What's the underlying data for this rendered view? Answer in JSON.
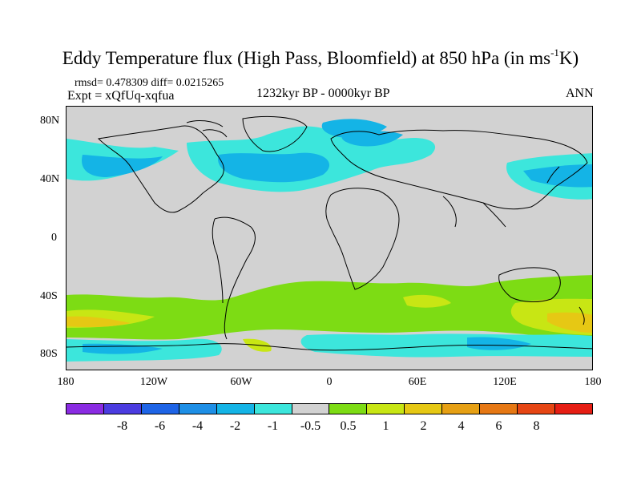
{
  "title_main": "Eddy Temperature flux (High Pass, Bloomfield) at 850 hPa (in ms",
  "title_sup": "-1",
  "title_end": "K)",
  "stats": "rmsd= 0.478309 diff= 0.0215265",
  "expt": "Expt = xQfUq-xqfua",
  "period": "1232kyr BP - 0000kyr BP",
  "season": "ANN",
  "lat_labels": [
    "80N",
    "40N",
    "0",
    "40S",
    "80S"
  ],
  "lon_labels": [
    "180",
    "120W",
    "60W",
    "0",
    "60E",
    "120E",
    "180"
  ],
  "colorbar": {
    "colors": [
      "#8a2be2",
      "#4b3ce0",
      "#1e64e6",
      "#1e8fe6",
      "#14b4e6",
      "#3ce6dc",
      "#d2d2d2",
      "#7ddc14",
      "#c8e614",
      "#e6c814",
      "#e6a014",
      "#e67814",
      "#e64614",
      "#e61e14"
    ],
    "labels": [
      "-8",
      "-6",
      "-4",
      "-2",
      "-1",
      "-0.5",
      "0.5",
      "1",
      "2",
      "4",
      "6",
      "8"
    ]
  },
  "colors": {
    "land_ocean_zero": "#d2d2d2",
    "neg_light": "#3ce6dc",
    "neg_mid": "#14b4e6",
    "pos_light": "#7ddc14",
    "pos_mid": "#c8e614",
    "pos_strong": "#e6c814"
  }
}
